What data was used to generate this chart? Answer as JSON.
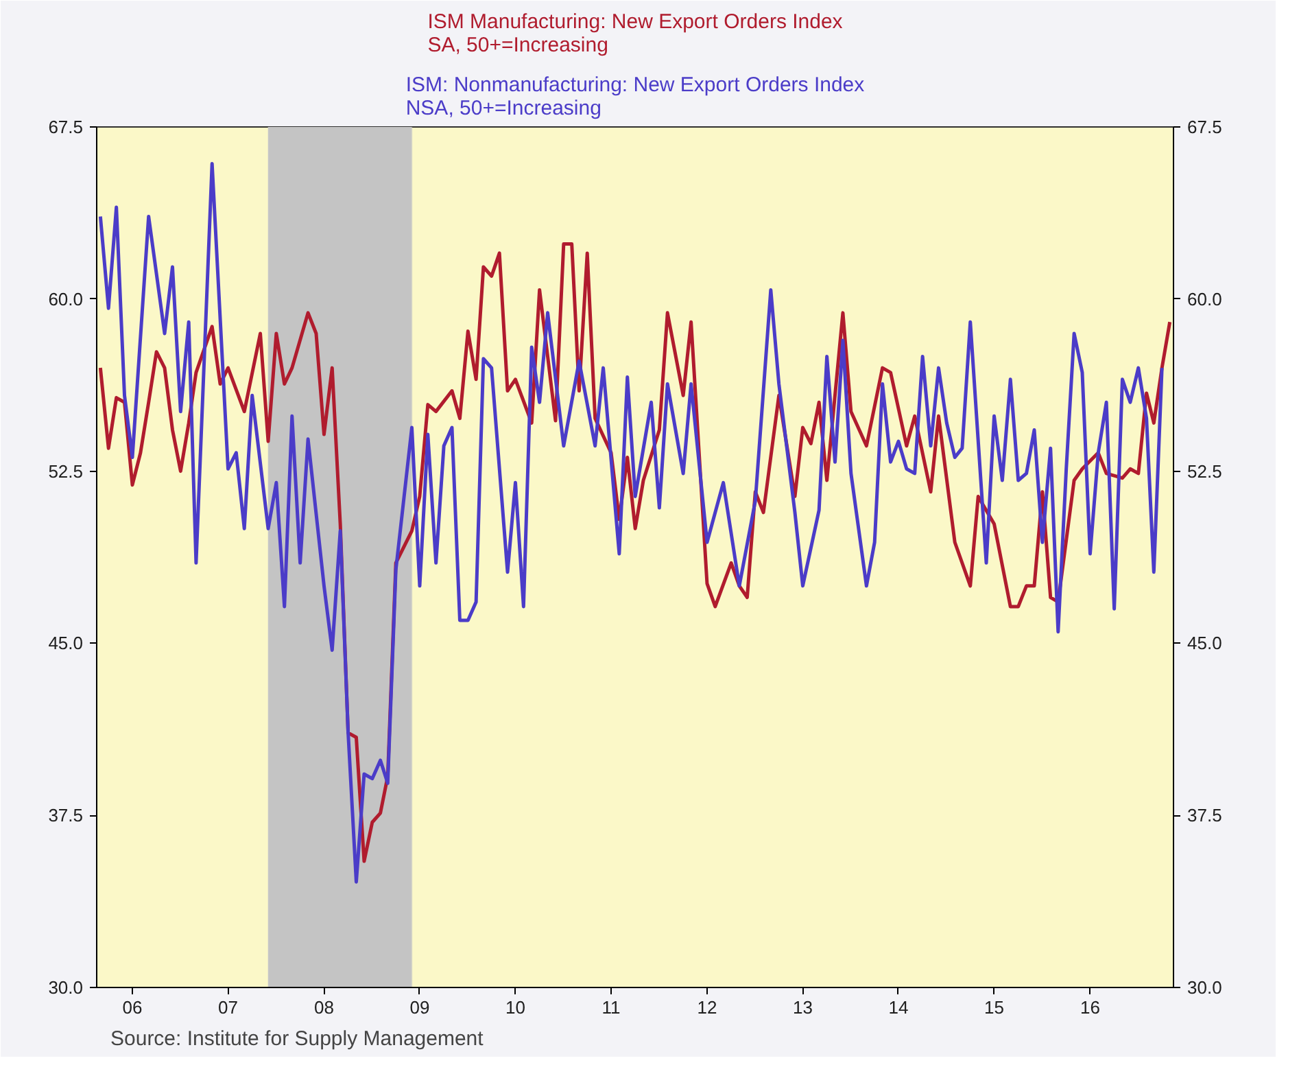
{
  "chart_data": {
    "type": "line",
    "series": [
      {
        "name": "ISM Manufacturing: New Export Orders Index\nSA, 50+=Increasing",
        "color": "#b01c2e",
        "x": [
          "2006-03",
          "2006-04",
          "2006-05",
          "2006-06",
          "2006-07",
          "2006-08",
          "2006-09",
          "2006-10",
          "2006-11",
          "2006-12",
          "2007-01",
          "2007-02",
          "2007-03",
          "2007-05",
          "2007-06",
          "2007-07",
          "2007-09",
          "2007-11",
          "2007-12",
          "2008-01",
          "2008-02",
          "2008-03",
          "2008-05",
          "2008-06",
          "2008-07",
          "2008-08",
          "2008-09",
          "2008-10",
          "2008-11",
          "2008-12",
          "2009-01",
          "2009-02",
          "2009-03",
          "2009-04",
          "2009-06",
          "2009-07",
          "2009-08",
          "2009-09",
          "2009-11",
          "2009-12",
          "2010-01",
          "2010-02",
          "2010-03",
          "2010-04",
          "2010-05",
          "2010-06",
          "2010-07",
          "2010-09",
          "2010-10",
          "2010-12",
          "2011-01",
          "2011-02",
          "2011-03",
          "2011-04",
          "2011-05",
          "2011-07",
          "2011-08",
          "2011-09",
          "2011-10",
          "2011-11",
          "2012-01",
          "2012-02",
          "2012-04",
          "2012-05",
          "2012-07",
          "2012-08",
          "2012-10",
          "2012-11",
          "2012-12",
          "2013-01",
          "2013-02",
          "2013-04",
          "2013-06",
          "2013-07",
          "2013-08",
          "2013-09",
          "2013-10",
          "2013-12",
          "2014-01",
          "2014-03",
          "2014-05",
          "2014-06",
          "2014-08",
          "2014-09",
          "2014-11",
          "2014-12",
          "2015-02",
          "2015-04",
          "2015-05",
          "2015-07",
          "2015-09",
          "2015-10",
          "2015-11",
          "2015-12",
          "2016-01",
          "2016-02",
          "2016-03",
          "2016-05",
          "2016-06",
          "2016-08",
          "2016-09",
          "2016-11",
          "2016-12",
          "2017-01",
          "2017-02",
          "2017-03",
          "2017-04",
          "2017-05"
        ],
        "values": [
          57.0,
          53.5,
          55.7,
          55.5,
          51.9,
          53.3,
          55.5,
          57.7,
          57.0,
          54.3,
          52.5,
          54.6,
          56.8,
          58.8,
          56.3,
          57.0,
          55.1,
          58.5,
          53.8,
          58.5,
          56.3,
          57.0,
          59.4,
          58.5,
          54.1,
          57.0,
          50.2,
          41.1,
          40.9,
          35.5,
          37.2,
          37.6,
          39.2,
          48.5,
          49.9,
          51.4,
          55.4,
          55.1,
          56.0,
          54.8,
          58.6,
          56.5,
          61.4,
          61.0,
          62.0,
          56.0,
          56.5,
          54.6,
          60.4,
          54.7,
          62.4,
          62.4,
          56.0,
          62.0,
          54.8,
          53.3,
          50.4,
          53.1,
          50.0,
          52.1,
          54.3,
          59.4,
          55.8,
          59.0,
          47.6,
          46.6,
          48.5,
          47.5,
          47.0,
          51.6,
          50.7,
          55.8,
          51.4,
          54.4,
          53.7,
          55.5,
          52.1,
          59.4,
          55.1,
          53.6,
          57.0,
          56.8,
          53.6,
          54.9,
          51.6,
          54.9,
          49.4,
          47.5,
          51.4,
          50.2,
          46.6,
          46.6,
          47.5,
          47.5,
          51.6,
          47.0,
          46.8,
          52.1,
          52.6,
          53.3,
          52.4,
          52.2,
          52.6,
          52.4,
          55.9,
          54.6,
          57.0,
          59.0
        ]
      },
      {
        "name": "ISM: Nonmanufacturing: New Export Orders Index\nNSA, 50+=Increasing",
        "color": "#4b3cc8",
        "x": [
          "2006-03",
          "2006-04",
          "2006-05",
          "2006-06",
          "2006-07",
          "2006-09",
          "2006-11",
          "2006-12",
          "2007-01",
          "2007-02",
          "2007-03",
          "2007-05",
          "2007-07",
          "2007-08",
          "2007-09",
          "2007-10",
          "2007-12",
          "2008-01",
          "2008-02",
          "2008-03",
          "2008-04",
          "2008-05",
          "2008-07",
          "2008-08",
          "2008-09",
          "2008-10",
          "2008-11",
          "2008-12",
          "2009-01",
          "2009-02",
          "2009-03",
          "2009-04",
          "2009-06",
          "2009-07",
          "2009-08",
          "2009-09",
          "2009-10",
          "2009-11",
          "2009-12",
          "2010-01",
          "2010-02",
          "2010-03",
          "2010-04",
          "2010-06",
          "2010-07",
          "2010-08",
          "2010-09",
          "2010-10",
          "2010-11",
          "2011-01",
          "2011-03",
          "2011-05",
          "2011-06",
          "2011-08",
          "2011-09",
          "2011-10",
          "2011-12",
          "2012-01",
          "2012-02",
          "2012-04",
          "2012-05",
          "2012-07",
          "2012-09",
          "2012-11",
          "2013-01",
          "2013-03",
          "2013-04",
          "2013-06",
          "2013-07",
          "2013-09",
          "2013-10",
          "2013-11",
          "2013-12",
          "2014-01",
          "2014-03",
          "2014-04",
          "2014-05",
          "2014-06",
          "2014-07",
          "2014-08",
          "2014-09",
          "2014-10",
          "2014-11",
          "2014-12",
          "2015-01",
          "2015-02",
          "2015-03",
          "2015-04",
          "2015-06",
          "2015-07",
          "2015-08",
          "2015-09",
          "2015-10",
          "2015-11",
          "2015-12",
          "2016-01",
          "2016-02",
          "2016-03",
          "2016-04",
          "2016-05",
          "2016-06",
          "2016-07",
          "2016-08",
          "2016-09",
          "2016-10",
          "2016-11",
          "2016-12",
          "2017-01",
          "2017-02",
          "2017-03",
          "2017-04"
        ],
        "values": [
          63.6,
          59.6,
          64.0,
          55.8,
          53.1,
          63.6,
          58.5,
          61.4,
          55.1,
          59.0,
          48.5,
          65.9,
          52.6,
          53.3,
          50.0,
          55.8,
          50.0,
          52.0,
          46.6,
          54.9,
          48.5,
          53.9,
          47.5,
          44.7,
          49.9,
          41.1,
          34.6,
          39.3,
          39.1,
          39.9,
          38.9,
          48.2,
          54.4,
          47.5,
          54.1,
          48.5,
          53.6,
          54.4,
          46.0,
          46.0,
          46.8,
          57.4,
          57.0,
          48.1,
          52.0,
          46.6,
          57.9,
          55.5,
          59.4,
          53.6,
          57.3,
          53.6,
          57.0,
          48.9,
          56.6,
          51.4,
          55.5,
          50.9,
          56.3,
          52.4,
          56.3,
          49.4,
          52.0,
          47.5,
          51.2,
          60.4,
          56.3,
          50.7,
          47.5,
          50.8,
          57.5,
          52.9,
          58.2,
          52.4,
          47.5,
          49.4,
          56.3,
          52.9,
          53.8,
          52.6,
          52.4,
          57.5,
          53.6,
          57.0,
          54.6,
          53.1,
          53.5,
          59.0,
          48.5,
          54.9,
          52.1,
          56.5,
          52.1,
          52.4,
          54.3,
          49.4,
          53.5,
          45.5,
          52.6,
          58.5,
          56.8,
          48.9,
          53.3,
          55.5,
          46.5,
          56.5,
          55.5,
          57.0,
          54.8,
          48.1,
          57.0
        ]
      }
    ],
    "xlim": [
      "2006-02-15",
      "2017-05-15"
    ],
    "xticks": [
      {
        "value": "2006-07-01",
        "label": "06"
      },
      {
        "value": "2007-07-01",
        "label": "07"
      },
      {
        "value": "2008-07-01",
        "label": "08"
      },
      {
        "value": "2009-07-01",
        "label": "09"
      },
      {
        "value": "2010-07-01",
        "label": "10"
      },
      {
        "value": "2011-07-01",
        "label": "11"
      },
      {
        "value": "2012-07-01",
        "label": "12"
      },
      {
        "value": "2013-07-01",
        "label": "13"
      },
      {
        "value": "2014-07-01",
        "label": "14"
      },
      {
        "value": "2015-07-01",
        "label": "15"
      },
      {
        "value": "2016-07-01",
        "label": "16"
      }
    ],
    "ylim": [
      30,
      67.5
    ],
    "yticks": [
      {
        "value": 30,
        "label": "30.0"
      },
      {
        "value": 37.5,
        "label": "37.5"
      },
      {
        "value": 45,
        "label": "45.0"
      },
      {
        "value": 52.5,
        "label": "52.5"
      },
      {
        "value": 60,
        "label": "60.0"
      },
      {
        "value": 67.5,
        "label": "67.5"
      }
    ],
    "y2lim": [
      30,
      67.5
    ],
    "y2ticks": [
      {
        "value": 30,
        "label": "30.0"
      },
      {
        "value": 37.5,
        "label": "37.5"
      },
      {
        "value": 45,
        "label": "45.0"
      },
      {
        "value": 52.5,
        "label": "52.5"
      },
      {
        "value": 60,
        "label": "60.0"
      },
      {
        "value": 67.5,
        "label": "67.5"
      }
    ],
    "bands": [
      {
        "axis": "x",
        "from": "2007-12-01",
        "to": "2009-06-01",
        "color": "#c4c4c4"
      }
    ],
    "annotations": [
      "Source:  Institute for Supply Management"
    ],
    "legend": "top",
    "grid": false,
    "line_style": "solid"
  }
}
